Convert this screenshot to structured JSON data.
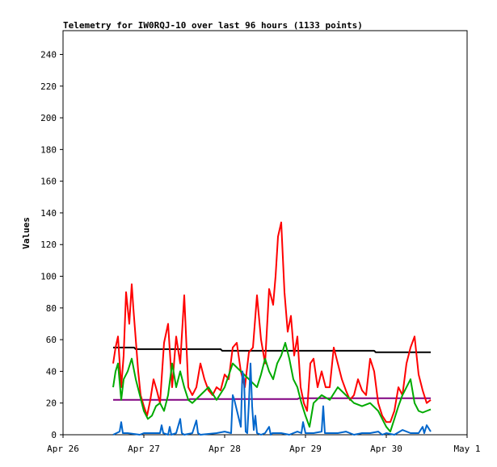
{
  "chart_data": {
    "type": "line",
    "title": "Telemetry for IW0RQJ-10 over last 96 hours (1133 points)",
    "ylabel": "Values",
    "xlabel": "",
    "ylim": [
      0,
      255
    ],
    "xlim": [
      0,
      5
    ],
    "y_ticks": [
      0,
      20,
      40,
      60,
      80,
      100,
      120,
      140,
      160,
      180,
      200,
      220,
      240
    ],
    "x_ticks": [
      {
        "x": 0,
        "label": "Apr 26"
      },
      {
        "x": 1,
        "label": "Apr 27"
      },
      {
        "x": 2,
        "label": "Apr 28"
      },
      {
        "x": 3,
        "label": "Apr 29"
      },
      {
        "x": 4,
        "label": "Apr 30"
      },
      {
        "x": 5,
        "label": "May 1"
      }
    ],
    "grid": false,
    "series": [
      {
        "color": "#000000",
        "x": [
          0.62,
          0.88,
          0.9,
          1.95,
          1.97,
          3.85,
          3.87,
          4.55
        ],
        "y": [
          55,
          55,
          54,
          54,
          53,
          53,
          52,
          52
        ]
      },
      {
        "color": "#800080",
        "x": [
          0.62,
          1.55,
          1.57,
          2.9,
          2.92,
          4.55
        ],
        "y": [
          22,
          22,
          22.5,
          22.5,
          23,
          23
        ]
      },
      {
        "color": "#ff0000",
        "x": [
          0.62,
          0.65,
          0.68,
          0.72,
          0.75,
          0.78,
          0.82,
          0.85,
          0.87,
          0.9,
          0.93,
          0.96,
          1.0,
          1.04,
          1.08,
          1.12,
          1.16,
          1.2,
          1.25,
          1.3,
          1.35,
          1.4,
          1.45,
          1.5,
          1.55,
          1.6,
          1.65,
          1.7,
          1.75,
          1.8,
          1.85,
          1.9,
          1.95,
          2.0,
          2.05,
          2.1,
          2.15,
          2.2,
          2.25,
          2.3,
          2.35,
          2.4,
          2.45,
          2.5,
          2.55,
          2.6,
          2.63,
          2.66,
          2.7,
          2.74,
          2.78,
          2.82,
          2.86,
          2.9,
          2.94,
          2.98,
          3.02,
          3.06,
          3.1,
          3.15,
          3.2,
          3.25,
          3.3,
          3.35,
          3.4,
          3.45,
          3.5,
          3.55,
          3.6,
          3.65,
          3.7,
          3.75,
          3.8,
          3.85,
          3.9,
          3.95,
          4.0,
          4.05,
          4.1,
          4.15,
          4.2,
          4.25,
          4.3,
          4.35,
          4.4,
          4.45,
          4.5,
          4.55
        ],
        "y": [
          45,
          55,
          62,
          30,
          50,
          90,
          70,
          95,
          80,
          60,
          40,
          25,
          18,
          12,
          22,
          35,
          28,
          20,
          58,
          70,
          30,
          62,
          45,
          88,
          30,
          25,
          30,
          45,
          35,
          28,
          25,
          30,
          28,
          38,
          35,
          55,
          58,
          40,
          30,
          52,
          55,
          88,
          60,
          45,
          92,
          82,
          100,
          125,
          134,
          90,
          65,
          75,
          50,
          62,
          30,
          20,
          15,
          45,
          48,
          30,
          40,
          30,
          30,
          55,
          45,
          35,
          28,
          22,
          25,
          35,
          28,
          25,
          48,
          40,
          20,
          12,
          8,
          8,
          15,
          30,
          25,
          45,
          55,
          62,
          38,
          28,
          20,
          22
        ]
      },
      {
        "color": "#00aa00",
        "x": [
          0.62,
          0.65,
          0.68,
          0.72,
          0.75,
          0.8,
          0.85,
          0.9,
          0.95,
          1.0,
          1.05,
          1.1,
          1.15,
          1.2,
          1.25,
          1.3,
          1.35,
          1.4,
          1.45,
          1.5,
          1.55,
          1.6,
          1.7,
          1.8,
          1.9,
          2.0,
          2.1,
          2.2,
          2.3,
          2.4,
          2.45,
          2.5,
          2.55,
          2.6,
          2.65,
          2.7,
          2.75,
          2.8,
          2.85,
          2.9,
          2.95,
          3.0,
          3.05,
          3.1,
          3.2,
          3.3,
          3.4,
          3.5,
          3.6,
          3.7,
          3.8,
          3.9,
          3.95,
          4.0,
          4.05,
          4.1,
          4.15,
          4.2,
          4.25,
          4.3,
          4.35,
          4.4,
          4.45,
          4.5,
          4.55
        ],
        "y": [
          30,
          40,
          45,
          22,
          35,
          40,
          48,
          35,
          25,
          15,
          10,
          12,
          18,
          20,
          15,
          25,
          45,
          30,
          40,
          30,
          22,
          20,
          25,
          30,
          22,
          30,
          45,
          40,
          35,
          30,
          38,
          48,
          40,
          35,
          45,
          50,
          58,
          48,
          35,
          30,
          20,
          12,
          5,
          20,
          25,
          22,
          30,
          25,
          20,
          18,
          20,
          15,
          10,
          5,
          2,
          10,
          18,
          25,
          30,
          35,
          20,
          15,
          14,
          15,
          16
        ]
      },
      {
        "color": "#0066cc",
        "x": [
          0.62,
          0.7,
          0.72,
          0.74,
          0.8,
          0.95,
          1.0,
          1.2,
          1.22,
          1.24,
          1.3,
          1.32,
          1.34,
          1.4,
          1.45,
          1.47,
          1.5,
          1.6,
          1.65,
          1.67,
          1.7,
          1.9,
          2.0,
          2.08,
          2.1,
          2.12,
          2.2,
          2.22,
          2.24,
          2.26,
          2.28,
          2.3,
          2.32,
          2.34,
          2.36,
          2.38,
          2.4,
          2.45,
          2.5,
          2.55,
          2.57,
          2.59,
          2.7,
          2.8,
          2.9,
          2.95,
          2.97,
          3.0,
          3.1,
          3.2,
          3.22,
          3.24,
          3.4,
          3.5,
          3.6,
          3.7,
          3.8,
          3.9,
          3.95,
          4.0,
          4.1,
          4.2,
          4.3,
          4.4,
          4.45,
          4.47,
          4.5,
          4.55
        ],
        "y": [
          0,
          2,
          8,
          1,
          1,
          0,
          1,
          1,
          6,
          1,
          0,
          5,
          0,
          1,
          10,
          1,
          0,
          1,
          9,
          1,
          0,
          1,
          2,
          1,
          25,
          22,
          5,
          40,
          35,
          2,
          1,
          20,
          45,
          18,
          3,
          12,
          1,
          0,
          1,
          5,
          0,
          1,
          1,
          0,
          2,
          1,
          8,
          1,
          1,
          2,
          18,
          1,
          1,
          2,
          0,
          1,
          1,
          2,
          0,
          1,
          0,
          3,
          1,
          1,
          5,
          1,
          6,
          2
        ]
      }
    ]
  }
}
